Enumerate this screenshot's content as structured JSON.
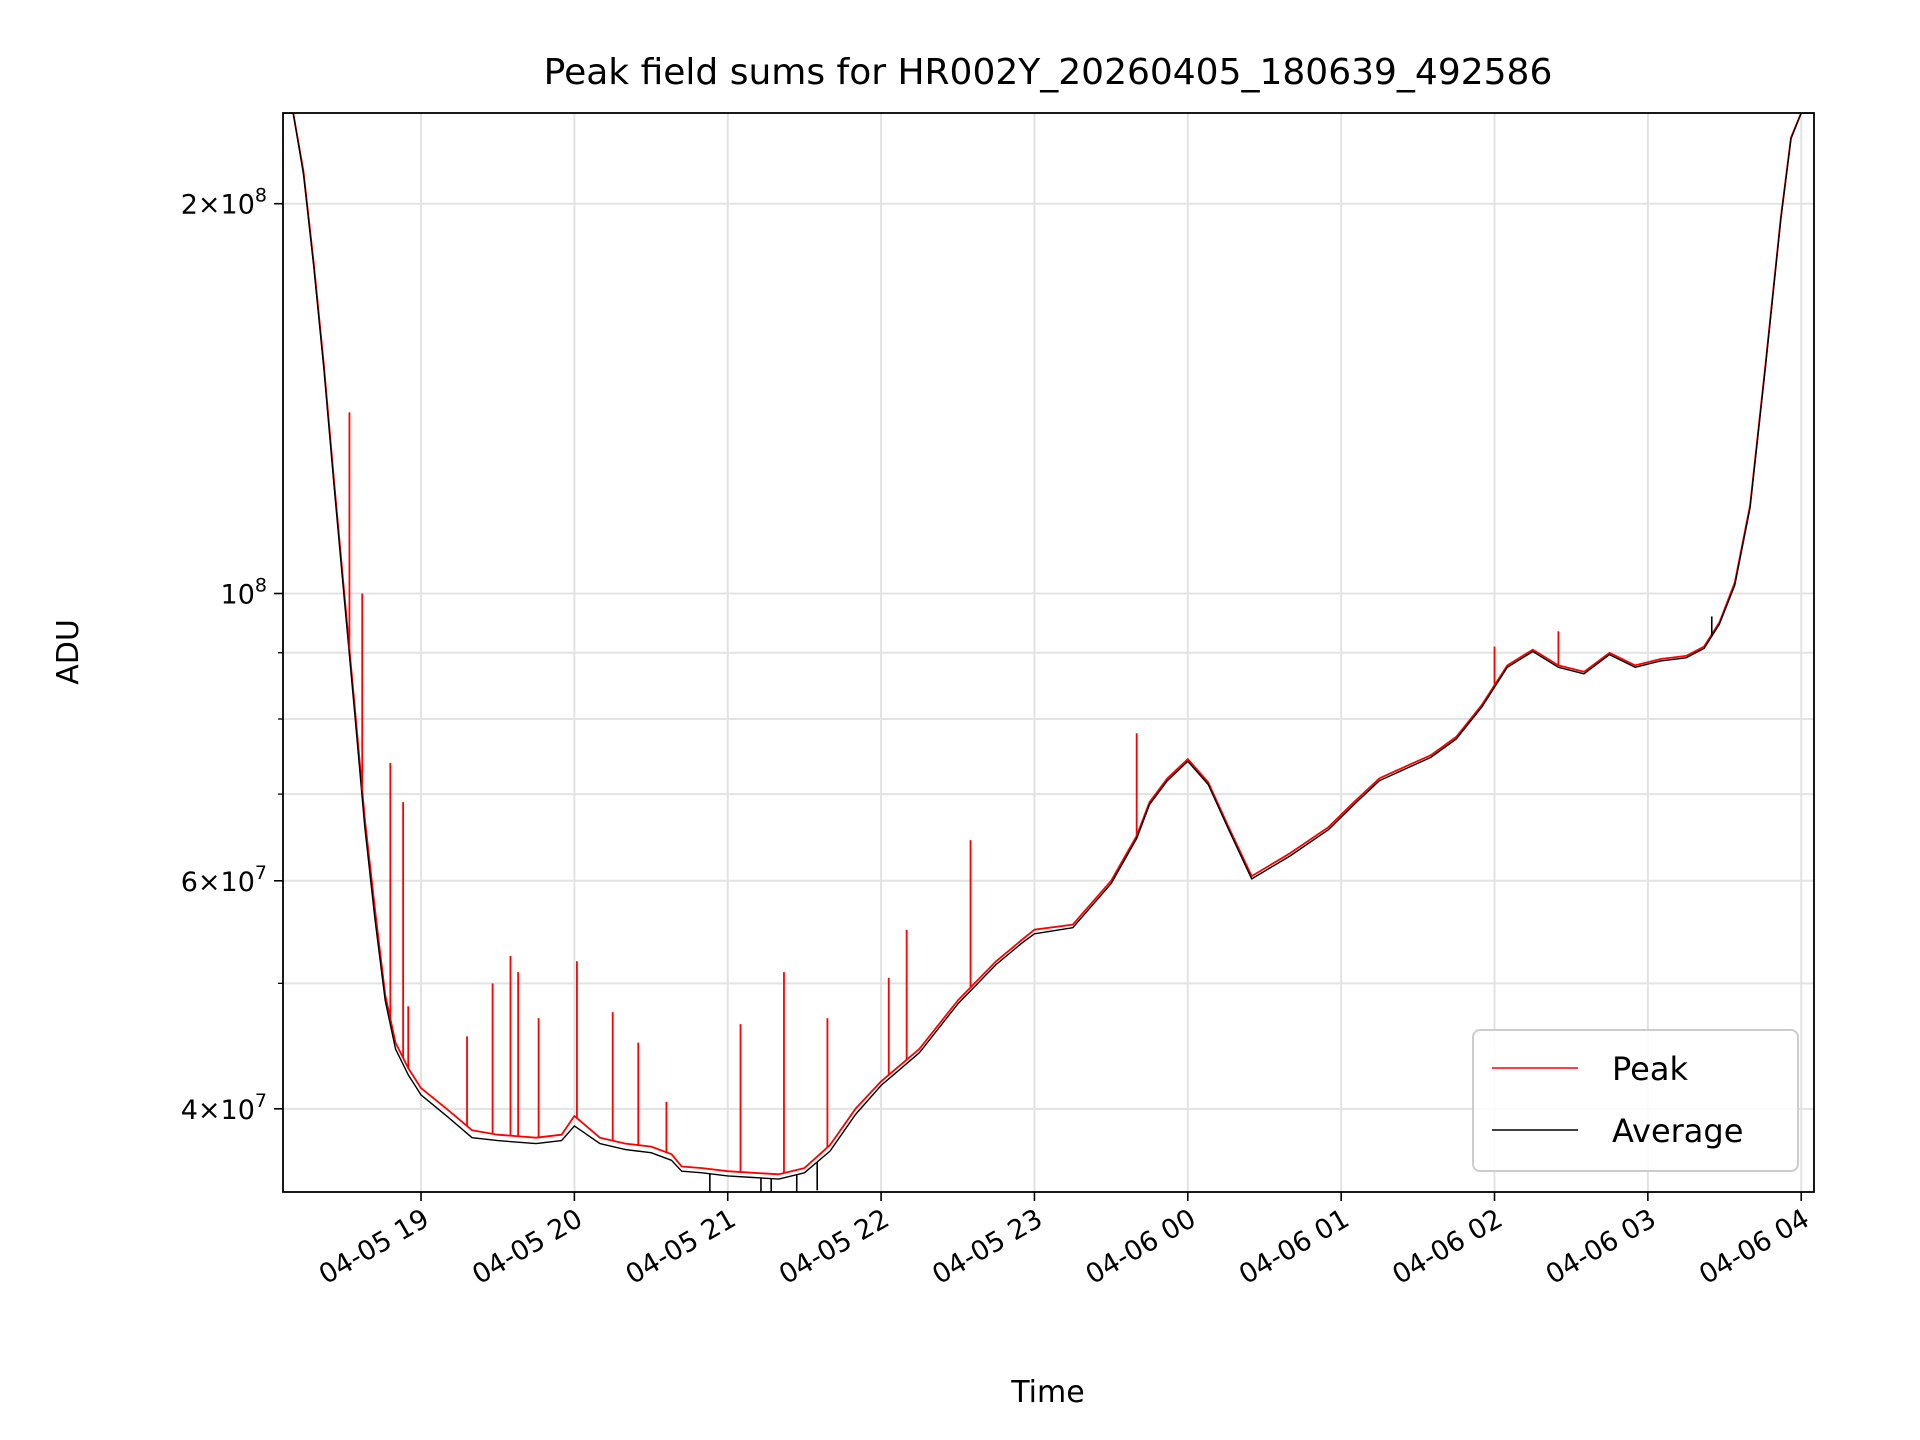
{
  "chart_data": {
    "type": "line",
    "title": "Peak field sums for HR002Y_20260405_180639_492586",
    "xlabel": "Time",
    "ylabel": "ADU",
    "y_scale": "log",
    "ylim": [
      34500000,
      235000000
    ],
    "xlim": [
      "2026-04-05 18:06",
      "2026-04-06 04:05"
    ],
    "grid": true,
    "legend_position": "lower-right",
    "x_ticks": [
      {
        "t": "2026-04-05 19:00",
        "label": "04-05 19"
      },
      {
        "t": "2026-04-05 20:00",
        "label": "04-05 20"
      },
      {
        "t": "2026-04-05 21:00",
        "label": "04-05 21"
      },
      {
        "t": "2026-04-05 22:00",
        "label": "04-05 22"
      },
      {
        "t": "2026-04-05 23:00",
        "label": "04-05 23"
      },
      {
        "t": "2026-04-06 00:00",
        "label": "04-06 00"
      },
      {
        "t": "2026-04-06 01:00",
        "label": "04-06 01"
      },
      {
        "t": "2026-04-06 02:00",
        "label": "04-06 02"
      },
      {
        "t": "2026-04-06 03:00",
        "label": "04-06 03"
      },
      {
        "t": "2026-04-06 04:00",
        "label": "04-06 04"
      }
    ],
    "y_major_ticks": [
      {
        "value": 40000000,
        "mantissa": "4",
        "exp": "7"
      },
      {
        "value": 60000000,
        "mantissa": "6",
        "exp": "7"
      },
      {
        "value": 100000000,
        "mantissa": "",
        "exp": "8"
      },
      {
        "value": 200000000,
        "mantissa": "2",
        "exp": "8"
      }
    ],
    "y_minor_ticks": [
      50000000,
      70000000,
      80000000,
      90000000
    ],
    "series": [
      {
        "name": "Peak",
        "color": "#ff0000",
        "x": [
          "2026-04-05 18:06",
          "2026-04-05 18:10",
          "2026-04-05 18:14",
          "2026-04-05 18:18",
          "2026-04-05 18:22",
          "2026-04-05 18:26",
          "2026-04-05 18:30",
          "2026-04-05 18:34",
          "2026-04-05 18:38",
          "2026-04-05 18:42",
          "2026-04-05 18:46",
          "2026-04-05 18:50",
          "2026-04-05 18:55",
          "2026-04-05 19:00",
          "2026-04-05 19:10",
          "2026-04-05 19:20",
          "2026-04-05 19:30",
          "2026-04-05 19:45",
          "2026-04-05 19:55",
          "2026-04-05 20:00",
          "2026-04-05 20:10",
          "2026-04-05 20:20",
          "2026-04-05 20:30",
          "2026-04-05 20:38",
          "2026-04-05 20:42",
          "2026-04-05 20:50",
          "2026-04-05 21:00",
          "2026-04-05 21:10",
          "2026-04-05 21:20",
          "2026-04-05 21:30",
          "2026-04-05 21:40",
          "2026-04-05 21:50",
          "2026-04-05 22:00",
          "2026-04-05 22:15",
          "2026-04-05 22:30",
          "2026-04-05 22:45",
          "2026-04-05 22:55",
          "2026-04-05 23:00",
          "2026-04-05 23:15",
          "2026-04-05 23:30",
          "2026-04-05 23:40",
          "2026-04-05 23:45",
          "2026-04-05 23:52",
          "2026-04-06 00:00",
          "2026-04-06 00:08",
          "2026-04-06 00:16",
          "2026-04-06 00:25",
          "2026-04-06 00:40",
          "2026-04-06 00:55",
          "2026-04-06 01:05",
          "2026-04-06 01:15",
          "2026-04-06 01:25",
          "2026-04-06 01:35",
          "2026-04-06 01:45",
          "2026-04-06 01:55",
          "2026-04-06 02:05",
          "2026-04-06 02:15",
          "2026-04-06 02:25",
          "2026-04-06 02:35",
          "2026-04-06 02:45",
          "2026-04-06 02:55",
          "2026-04-06 03:05",
          "2026-04-06 03:15",
          "2026-04-06 03:22",
          "2026-04-06 03:28",
          "2026-04-06 03:34",
          "2026-04-06 03:40",
          "2026-04-06 03:46",
          "2026-04-06 03:52",
          "2026-04-06 03:56",
          "2026-04-06 04:00",
          "2026-04-06 04:05"
        ],
        "y": [
          235000000,
          235000000,
          212000000,
          180000000,
          150000000,
          122000000,
          100000000,
          82000000,
          67000000,
          57000000,
          49000000,
          45000000,
          43000000,
          41500000,
          40000000,
          38500000,
          38200000,
          38000000,
          38200000,
          39500000,
          38000000,
          37600000,
          37400000,
          36900000,
          36100000,
          36000000,
          35800000,
          35700000,
          35600000,
          36000000,
          37500000,
          40000000,
          42000000,
          44500000,
          48500000,
          52000000,
          54000000,
          55000000,
          55500000,
          60000000,
          65000000,
          69000000,
          72000000,
          74500000,
          71500000,
          66000000,
          60500000,
          63000000,
          66000000,
          69000000,
          72000000,
          73500000,
          75000000,
          77500000,
          82000000,
          88000000,
          90500000,
          88000000,
          87000000,
          90000000,
          88000000,
          89000000,
          89500000,
          91000000,
          95000000,
          102000000,
          117000000,
          150000000,
          195000000,
          225000000,
          235000000,
          235000000
        ]
      },
      {
        "name": "Average",
        "color": "#000000",
        "x": [
          "2026-04-05 18:06",
          "2026-04-05 18:10",
          "2026-04-05 18:14",
          "2026-04-05 18:18",
          "2026-04-05 18:22",
          "2026-04-05 18:26",
          "2026-04-05 18:30",
          "2026-04-05 18:34",
          "2026-04-05 18:38",
          "2026-04-05 18:42",
          "2026-04-05 18:46",
          "2026-04-05 18:50",
          "2026-04-05 18:55",
          "2026-04-05 19:00",
          "2026-04-05 19:10",
          "2026-04-05 19:20",
          "2026-04-05 19:30",
          "2026-04-05 19:45",
          "2026-04-05 19:55",
          "2026-04-05 20:00",
          "2026-04-05 20:10",
          "2026-04-05 20:20",
          "2026-04-05 20:30",
          "2026-04-05 20:38",
          "2026-04-05 20:42",
          "2026-04-05 20:50",
          "2026-04-05 21:00",
          "2026-04-05 21:10",
          "2026-04-05 21:20",
          "2026-04-05 21:30",
          "2026-04-05 21:40",
          "2026-04-05 21:50",
          "2026-04-05 22:00",
          "2026-04-05 22:15",
          "2026-04-05 22:30",
          "2026-04-05 22:45",
          "2026-04-05 22:55",
          "2026-04-05 23:00",
          "2026-04-05 23:15",
          "2026-04-05 23:30",
          "2026-04-05 23:40",
          "2026-04-05 23:45",
          "2026-04-05 23:52",
          "2026-04-06 00:00",
          "2026-04-06 00:08",
          "2026-04-06 00:16",
          "2026-04-06 00:25",
          "2026-04-06 00:40",
          "2026-04-06 00:55",
          "2026-04-06 01:05",
          "2026-04-06 01:15",
          "2026-04-06 01:25",
          "2026-04-06 01:35",
          "2026-04-06 01:45",
          "2026-04-06 01:55",
          "2026-04-06 02:05",
          "2026-04-06 02:15",
          "2026-04-06 02:25",
          "2026-04-06 02:35",
          "2026-04-06 02:45",
          "2026-04-06 02:55",
          "2026-04-06 03:05",
          "2026-04-06 03:15",
          "2026-04-06 03:22",
          "2026-04-06 03:28",
          "2026-04-06 03:34",
          "2026-04-06 03:40",
          "2026-04-06 03:46",
          "2026-04-06 03:52",
          "2026-04-06 03:56",
          "2026-04-06 04:00",
          "2026-04-06 04:05"
        ],
        "y": [
          235000000,
          235000000,
          211000000,
          179000000,
          149000000,
          121000000,
          99000000,
          81000000,
          66000000,
          56000000,
          48500000,
          44500000,
          42500000,
          41000000,
          39500000,
          38000000,
          37800000,
          37600000,
          37800000,
          38800000,
          37600000,
          37200000,
          37000000,
          36500000,
          35800000,
          35700000,
          35500000,
          35400000,
          35300000,
          35700000,
          37100000,
          39600000,
          41700000,
          44200000,
          48200000,
          51700000,
          53700000,
          54600000,
          55200000,
          59700000,
          64700000,
          68700000,
          71700000,
          74200000,
          71200000,
          65700000,
          60200000,
          62700000,
          65700000,
          68700000,
          71700000,
          73200000,
          74700000,
          77200000,
          81700000,
          87700000,
          90200000,
          87700000,
          86700000,
          89700000,
          87700000,
          88700000,
          89200000,
          90700000,
          94700000,
          101500000,
          116500000,
          149500000,
          194500000,
          224500000,
          235000000,
          235000000
        ]
      }
    ],
    "spikes": [
      {
        "t": "2026-04-05 18:32",
        "y": 138000000
      },
      {
        "t": "2026-04-05 18:37",
        "y": 100000000
      },
      {
        "t": "2026-04-05 18:48",
        "y": 74000000
      },
      {
        "t": "2026-04-05 18:53",
        "y": 69000000
      },
      {
        "t": "2026-04-05 18:55",
        "y": 48000000
      },
      {
        "t": "2026-04-05 19:18",
        "y": 45500000
      },
      {
        "t": "2026-04-05 19:28",
        "y": 50000000
      },
      {
        "t": "2026-04-05 19:35",
        "y": 52500000
      },
      {
        "t": "2026-04-05 19:38",
        "y": 51000000
      },
      {
        "t": "2026-04-05 19:46",
        "y": 47000000
      },
      {
        "t": "2026-04-05 20:01",
        "y": 52000000
      },
      {
        "t": "2026-04-05 20:15",
        "y": 47500000
      },
      {
        "t": "2026-04-05 20:25",
        "y": 45000000
      },
      {
        "t": "2026-04-05 20:36",
        "y": 40500000
      },
      {
        "t": "2026-04-05 21:05",
        "y": 46500000
      },
      {
        "t": "2026-04-05 21:22",
        "y": 51000000
      },
      {
        "t": "2026-04-05 21:39",
        "y": 47000000
      },
      {
        "t": "2026-04-05 22:03",
        "y": 50500000
      },
      {
        "t": "2026-04-05 22:10",
        "y": 55000000
      },
      {
        "t": "2026-04-05 22:35",
        "y": 64500000
      },
      {
        "t": "2026-04-05 23:40",
        "y": 78000000
      },
      {
        "t": "2026-04-06 02:00",
        "y": 91000000
      },
      {
        "t": "2026-04-06 02:25",
        "y": 93500000
      }
    ],
    "dips": [
      {
        "t": "2026-04-05 20:53",
        "y": 34500000
      },
      {
        "t": "2026-04-05 21:13",
        "y": 34500000
      },
      {
        "t": "2026-04-05 21:17",
        "y": 34500000
      },
      {
        "t": "2026-04-05 21:27",
        "y": 34500000
      },
      {
        "t": "2026-04-05 21:35",
        "y": 34600000
      },
      {
        "t": "2026-04-06 03:25",
        "y": 96000000
      }
    ]
  }
}
